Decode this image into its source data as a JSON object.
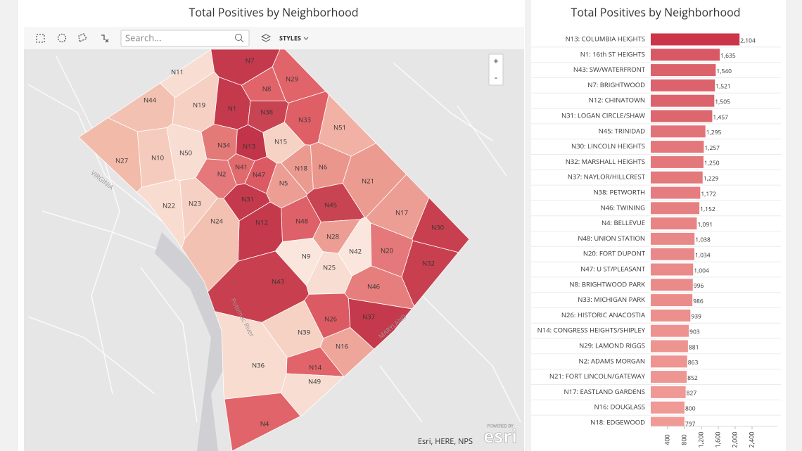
{
  "map": {
    "title": "Total Positives by Neighborhood",
    "search_placeholder": "Search...",
    "styles_button": "STYLES",
    "zoom_in": "+",
    "zoom_out": "-",
    "attribution": "Esri, HERE, NPS",
    "logo_small": "POWERED BY",
    "logo": "esri",
    "place_labels": [
      "VIRGINIA",
      "Potomac River",
      "MARYLAND"
    ],
    "regions": [
      {
        "label": "N7",
        "color": "#c43a4c"
      },
      {
        "label": "N11",
        "color": "#f8ddd2"
      },
      {
        "label": "N29",
        "color": "#e0646a"
      },
      {
        "label": "N8",
        "color": "#e0646a"
      },
      {
        "label": "N44",
        "color": "#f3c1b2"
      },
      {
        "label": "N19",
        "color": "#f6d0c3"
      },
      {
        "label": "N1",
        "color": "#c43a4c"
      },
      {
        "label": "N38",
        "color": "#c94452"
      },
      {
        "label": "N33",
        "color": "#df5f66"
      },
      {
        "label": "N51",
        "color": "#f1b1a4"
      },
      {
        "label": "N34",
        "color": "#e47a78"
      },
      {
        "label": "N13",
        "color": "#c23449"
      },
      {
        "label": "N15",
        "color": "#f6d2c5"
      },
      {
        "label": "N27",
        "color": "#f2bba9"
      },
      {
        "label": "N10",
        "color": "#f5cbbd"
      },
      {
        "label": "N50",
        "color": "#f8ddd2"
      },
      {
        "label": "N41",
        "color": "#e06a6c"
      },
      {
        "label": "N18",
        "color": "#eb9a90"
      },
      {
        "label": "N6",
        "color": "#eb968c"
      },
      {
        "label": "N2",
        "color": "#e4787a"
      },
      {
        "label": "N47",
        "color": "#dc5a64"
      },
      {
        "label": "N5",
        "color": "#ec9e94"
      },
      {
        "label": "N21",
        "color": "#ec9b90"
      },
      {
        "label": "N31",
        "color": "#c43a4c"
      },
      {
        "label": "N45",
        "color": "#c94452"
      },
      {
        "label": "N22",
        "color": "#f8dcd0"
      },
      {
        "label": "N23",
        "color": "#f6d0c3"
      },
      {
        "label": "N12",
        "color": "#c43a4c"
      },
      {
        "label": "N48",
        "color": "#de6068"
      },
      {
        "label": "N24",
        "color": "#f3c1b2"
      },
      {
        "label": "N17",
        "color": "#ec9e94"
      },
      {
        "label": "N30",
        "color": "#c8404f"
      },
      {
        "label": "N28",
        "color": "#ec9e94"
      },
      {
        "label": "N42",
        "color": "#fae6dc"
      },
      {
        "label": "N20",
        "color": "#e4787a"
      },
      {
        "label": "N9",
        "color": "#fae6dc"
      },
      {
        "label": "N32",
        "color": "#c8404f"
      },
      {
        "label": "N25",
        "color": "#f8ddd2"
      },
      {
        "label": "N43",
        "color": "#c8404f"
      },
      {
        "label": "N46",
        "color": "#e57e7c"
      },
      {
        "label": "N26",
        "color": "#dc5a64"
      },
      {
        "label": "N37",
        "color": "#c43a4c"
      },
      {
        "label": "N39",
        "color": "#f6d2c5"
      },
      {
        "label": "N16",
        "color": "#eea69b"
      },
      {
        "label": "N36",
        "color": "#f8dcd0"
      },
      {
        "label": "N14",
        "color": "#e0646a"
      },
      {
        "label": "N49",
        "color": "#f8ddd2"
      },
      {
        "label": "N4",
        "color": "#e0646a"
      }
    ]
  },
  "chart_data": {
    "type": "hbar",
    "title": "Total Positives by Neighborhood",
    "categories": [
      "N13: COLUMBIA HEIGHTS",
      "N1: 16th ST HEIGHTS",
      "N43: SW/WATERFRONT",
      "N7: BRIGHTWOOD",
      "N12: CHINATOWN",
      "N31: LOGAN CIRCLE/SHAW",
      "N45: TRINIDAD",
      "N30: LINCOLN HEIGHTS",
      "N32: MARSHALL HEIGHTS",
      "N37: NAYLOR/HILLCREST",
      "N38: PETWORTH",
      "N46: TWINING",
      "N4: BELLEVUE",
      "N48: UNION STATION",
      "N20: FORT DUPONT",
      "N47: U ST/PLEASANT",
      "N8: BRIGHTWOOD PARK",
      "N33: MICHIGAN PARK",
      "N26: HISTORIC ANACOSTIA",
      "N14: CONGRESS HEIGHTS/SHIPLEY",
      "N29: LAMOND RIGGS",
      "N2: ADAMS MORGAN",
      "N21: FORT LINCOLN/GATEWAY",
      "N17: EASTLAND GARDENS",
      "N16: DOUGLASS",
      "N18: EDGEWOOD"
    ],
    "values": [
      2104,
      1635,
      1540,
      1521,
      1505,
      1457,
      1295,
      1257,
      1250,
      1229,
      1172,
      1152,
      1091,
      1038,
      1034,
      1004,
      996,
      986,
      939,
      903,
      881,
      863,
      852,
      827,
      800,
      797
    ],
    "value_labels": [
      "2,104",
      "1,635",
      "1,540",
      "1,521",
      "1,505",
      "1,457",
      "1,295",
      "1,257",
      "1,250",
      "1,229",
      "1,172",
      "1,152",
      "1,091",
      "1,038",
      "1,034",
      "1,004",
      "996",
      "986",
      "939",
      "903",
      "881",
      "863",
      "852",
      "827",
      "800",
      "797"
    ],
    "color_range": [
      "#f09b96",
      "#c4203a"
    ],
    "xlim": [
      0,
      3000
    ],
    "xticks": [
      400,
      800,
      {
        "value": 1200,
        "label": "1,200"
      },
      {
        "value": 1600,
        "label": "1,600"
      },
      {
        "value": 2000,
        "label": "2,000"
      },
      {
        "value": 2400,
        "label": "2,400"
      }
    ]
  }
}
